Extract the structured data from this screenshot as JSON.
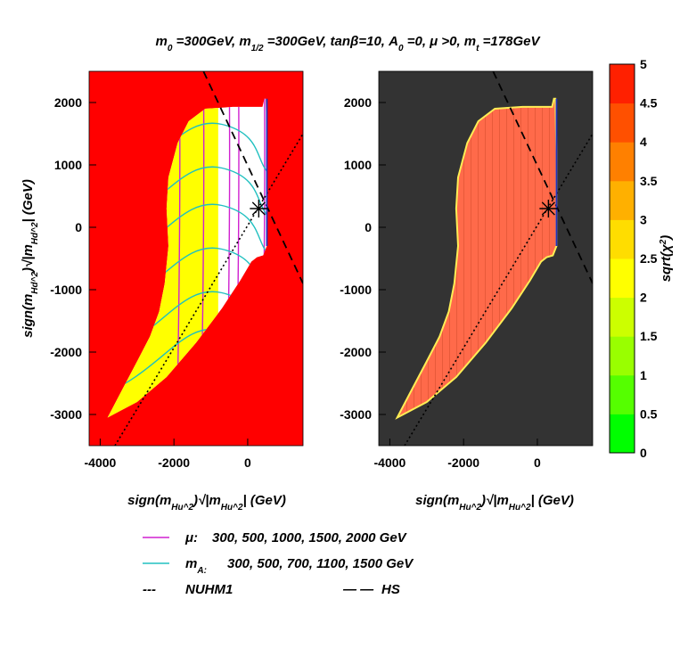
{
  "chart_data": {
    "type": "heatmap",
    "title": "m_0 =300GeV, m_1/2 =300GeV, tanβ=10, A_0 =0, μ >0, m_t =178GeV",
    "panels": [
      {
        "name": "left",
        "xlabel": "sign(m_Hu^2)√|m_Hu^2| (GeV)",
        "ylabel": "sign(m_Hd^2)√|m_Hd^2| (GeV)",
        "xlim": [
          -4300,
          1500
        ],
        "ylim": [
          -3500,
          2500
        ],
        "xticks": [
          -4000,
          -2000,
          0
        ],
        "yticks": [
          2000,
          1000,
          0,
          -1000,
          -2000,
          -3000
        ],
        "background": "#ff0000",
        "allowed_region_colors": [
          "#ffff00",
          "#ffffff"
        ]
      },
      {
        "name": "right",
        "xlabel": "sign(m_Hu^2)√|m_Hu^2| (GeV)",
        "ylabel": "",
        "xlim": [
          -4300,
          1500
        ],
        "ylim": [
          -3500,
          2500
        ],
        "xticks": [
          -4000,
          -2000,
          0
        ],
        "yticks": [
          2000,
          1000,
          0,
          -1000,
          -2000,
          -3000
        ],
        "background": "#333333",
        "allowed_region_colors": [
          "#ff6a4a"
        ]
      }
    ],
    "colorbar": {
      "label": "sqrt(χ^2)",
      "min": 0,
      "max": 5,
      "ticks": [
        "5",
        "4.5",
        "4",
        "3.5",
        "3",
        "2.5",
        "2",
        "1.5",
        "1",
        "0.5",
        "0"
      ],
      "colors": [
        "#00ff00",
        "#55ff00",
        "#99ff00",
        "#ccff00",
        "#ffff00",
        "#ffdd00",
        "#ffb000",
        "#ff8000",
        "#ff5000",
        "#ff2000"
      ]
    },
    "best_fit_point": {
      "x": 300,
      "y": 300
    },
    "reference_lines": [
      {
        "name": "NUHM1",
        "style": "dotted",
        "points": [
          [
            -3600,
            -3500
          ],
          [
            1500,
            1500
          ]
        ]
      },
      {
        "name": "HS",
        "style": "dashed",
        "points": [
          [
            -1200,
            2500
          ],
          [
            1500,
            -900
          ]
        ]
      }
    ],
    "mu_contours_GeV": [
      300,
      500,
      1000,
      1500,
      2000
    ],
    "mA_contours_GeV": [
      300,
      500,
      700,
      1100,
      1500
    ]
  },
  "legend": {
    "mu": {
      "symbol": "μ:",
      "values": "300, 500, 1000, 1500, 2000 GeV",
      "color": "#d020d0"
    },
    "mA": {
      "symbol": "m_A:",
      "values": "300, 500, 700, 1100, 1500 GeV",
      "color": "#20c0c0"
    },
    "nuhm1": {
      "label": "NUHM1",
      "dash": "---"
    },
    "hs": {
      "label": "HS",
      "dash": "— —"
    }
  }
}
